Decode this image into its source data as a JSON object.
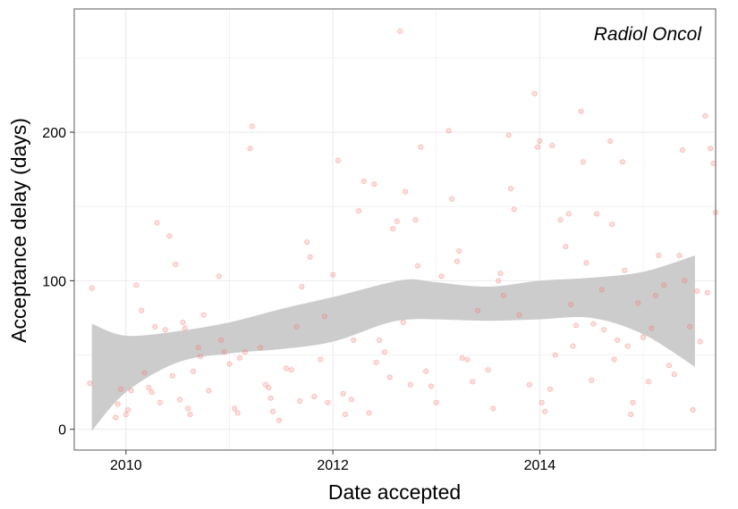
{
  "chart_data": {
    "type": "scatter",
    "title": "",
    "panel_label": "Radiol Oncol",
    "xlabel": "Date accepted",
    "ylabel": "Acceptance delay (days)",
    "xlim": [
      2009.5,
      2015.7
    ],
    "ylim": [
      -14,
      283
    ],
    "x_ticks": [
      2010,
      2012,
      2014
    ],
    "x_tick_labels": [
      "2010",
      "2012",
      "2014"
    ],
    "y_ticks": [
      0,
      100,
      200
    ],
    "y_tick_labels": [
      "0",
      "100",
      "200"
    ],
    "grid": true,
    "legend": "none",
    "colors": {
      "points": "#f8766d",
      "ribbon": "#cccccc",
      "grid": "#ebebeb",
      "panel_border": "#7f7f7f"
    },
    "smooth_band": {
      "x": [
        2009.67,
        2010.0,
        2010.5,
        2011.0,
        2011.5,
        2012.0,
        2012.5,
        2012.75,
        2013.0,
        2013.5,
        2014.0,
        2014.5,
        2015.0,
        2015.5
      ],
      "lower": [
        -1,
        25,
        45,
        51,
        54,
        59,
        71,
        74,
        74,
        73,
        74,
        75,
        64,
        42
      ],
      "upper": [
        71,
        63,
        66,
        72,
        81,
        89,
        98,
        101,
        99,
        96,
        100,
        102,
        106,
        117
      ]
    },
    "series": [
      {
        "points": [
          [
            2009.65,
            31
          ],
          [
            2009.67,
            95
          ],
          [
            2009.9,
            8
          ],
          [
            2009.92,
            17
          ],
          [
            2009.95,
            27
          ],
          [
            2010.0,
            10
          ],
          [
            2010.02,
            13
          ],
          [
            2010.05,
            26
          ],
          [
            2010.1,
            97
          ],
          [
            2010.15,
            80
          ],
          [
            2010.18,
            38
          ],
          [
            2010.22,
            28
          ],
          [
            2010.25,
            25
          ],
          [
            2010.28,
            69
          ],
          [
            2010.3,
            139
          ],
          [
            2010.33,
            18
          ],
          [
            2010.38,
            67
          ],
          [
            2010.42,
            130
          ],
          [
            2010.45,
            36
          ],
          [
            2010.48,
            111
          ],
          [
            2010.52,
            20
          ],
          [
            2010.55,
            72
          ],
          [
            2010.57,
            68
          ],
          [
            2010.6,
            14
          ],
          [
            2010.62,
            10
          ],
          [
            2010.65,
            39
          ],
          [
            2010.7,
            55
          ],
          [
            2010.72,
            49
          ],
          [
            2010.75,
            77
          ],
          [
            2010.8,
            26
          ],
          [
            2010.9,
            103
          ],
          [
            2010.92,
            60
          ],
          [
            2010.95,
            52
          ],
          [
            2011.0,
            44
          ],
          [
            2011.05,
            14
          ],
          [
            2011.08,
            11
          ],
          [
            2011.1,
            48
          ],
          [
            2011.15,
            52
          ],
          [
            2011.2,
            189
          ],
          [
            2011.22,
            204
          ],
          [
            2011.3,
            55
          ],
          [
            2011.35,
            30
          ],
          [
            2011.38,
            28
          ],
          [
            2011.4,
            21
          ],
          [
            2011.42,
            12
          ],
          [
            2011.48,
            6
          ],
          [
            2011.55,
            41
          ],
          [
            2011.6,
            40
          ],
          [
            2011.65,
            69
          ],
          [
            2011.68,
            19
          ],
          [
            2011.7,
            96
          ],
          [
            2011.75,
            126
          ],
          [
            2011.78,
            116
          ],
          [
            2011.82,
            22
          ],
          [
            2011.88,
            47
          ],
          [
            2011.92,
            76
          ],
          [
            2011.95,
            18
          ],
          [
            2012.0,
            104
          ],
          [
            2012.05,
            181
          ],
          [
            2012.1,
            24
          ],
          [
            2012.12,
            10
          ],
          [
            2012.18,
            20
          ],
          [
            2012.2,
            60
          ],
          [
            2012.25,
            147
          ],
          [
            2012.3,
            167
          ],
          [
            2012.35,
            11
          ],
          [
            2012.4,
            165
          ],
          [
            2012.42,
            45
          ],
          [
            2012.45,
            60
          ],
          [
            2012.5,
            52
          ],
          [
            2012.55,
            35
          ],
          [
            2012.58,
            135
          ],
          [
            2012.62,
            140
          ],
          [
            2012.65,
            268
          ],
          [
            2012.68,
            72
          ],
          [
            2012.7,
            160
          ],
          [
            2012.75,
            30
          ],
          [
            2012.8,
            141
          ],
          [
            2012.82,
            110
          ],
          [
            2012.85,
            190
          ],
          [
            2012.9,
            39
          ],
          [
            2012.95,
            29
          ],
          [
            2013.0,
            18
          ],
          [
            2013.05,
            103
          ],
          [
            2013.12,
            201
          ],
          [
            2013.15,
            155
          ],
          [
            2013.2,
            113
          ],
          [
            2013.22,
            120
          ],
          [
            2013.25,
            48
          ],
          [
            2013.3,
            47
          ],
          [
            2013.35,
            32
          ],
          [
            2013.4,
            80
          ],
          [
            2013.5,
            40
          ],
          [
            2013.55,
            14
          ],
          [
            2013.6,
            100
          ],
          [
            2013.62,
            105
          ],
          [
            2013.65,
            90
          ],
          [
            2013.7,
            198
          ],
          [
            2013.72,
            162
          ],
          [
            2013.75,
            148
          ],
          [
            2013.8,
            77
          ],
          [
            2013.9,
            30
          ],
          [
            2013.95,
            226
          ],
          [
            2013.98,
            190
          ],
          [
            2014.0,
            194
          ],
          [
            2014.02,
            18
          ],
          [
            2014.05,
            12
          ],
          [
            2014.1,
            27
          ],
          [
            2014.12,
            191
          ],
          [
            2014.15,
            50
          ],
          [
            2014.2,
            141
          ],
          [
            2014.25,
            123
          ],
          [
            2014.28,
            145
          ],
          [
            2014.3,
            84
          ],
          [
            2014.32,
            56
          ],
          [
            2014.35,
            70
          ],
          [
            2014.4,
            214
          ],
          [
            2014.42,
            180
          ],
          [
            2014.45,
            112
          ],
          [
            2014.5,
            33
          ],
          [
            2014.52,
            71
          ],
          [
            2014.55,
            145
          ],
          [
            2014.6,
            94
          ],
          [
            2014.62,
            67
          ],
          [
            2014.68,
            194
          ],
          [
            2014.7,
            138
          ],
          [
            2014.72,
            47
          ],
          [
            2014.75,
            60
          ],
          [
            2014.8,
            180
          ],
          [
            2014.82,
            107
          ],
          [
            2014.85,
            56
          ],
          [
            2014.88,
            10
          ],
          [
            2014.9,
            18
          ],
          [
            2014.95,
            85
          ],
          [
            2015.0,
            62
          ],
          [
            2015.05,
            32
          ],
          [
            2015.08,
            68
          ],
          [
            2015.12,
            90
          ],
          [
            2015.15,
            117
          ],
          [
            2015.2,
            97
          ],
          [
            2015.25,
            43
          ],
          [
            2015.3,
            37
          ],
          [
            2015.35,
            117
          ],
          [
            2015.38,
            188
          ],
          [
            2015.4,
            100
          ],
          [
            2015.45,
            69
          ],
          [
            2015.48,
            13
          ],
          [
            2015.52,
            93
          ],
          [
            2015.55,
            59
          ],
          [
            2015.6,
            211
          ],
          [
            2015.62,
            92
          ],
          [
            2015.65,
            189
          ],
          [
            2015.68,
            179
          ],
          [
            2015.7,
            146
          ]
        ]
      }
    ]
  }
}
